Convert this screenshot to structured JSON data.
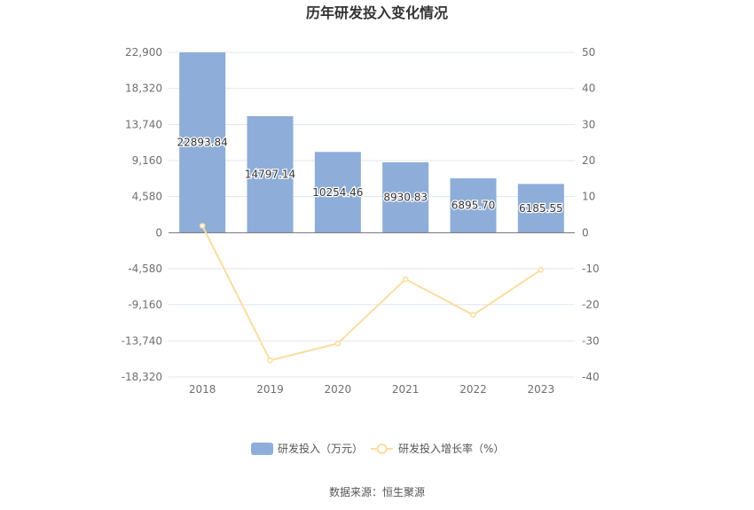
{
  "chart_data": {
    "type": "bar",
    "title": "历年研发投入变化情况",
    "categories": [
      "2018",
      "2019",
      "2020",
      "2021",
      "2022",
      "2023"
    ],
    "series": [
      {
        "name": "研发投入（万元）",
        "type": "bar",
        "axis": "left",
        "color": "#8eadd9",
        "values": [
          22893.84,
          14797.14,
          10254.46,
          8930.83,
          6895.7,
          6185.55
        ],
        "labels": [
          "22893.84",
          "14797.14",
          "10254.46",
          "8930.83",
          "6895.70",
          "6185.55"
        ]
      },
      {
        "name": "研发投入增长率（%）",
        "type": "line",
        "axis": "right",
        "color": "#fbdca0",
        "values": [
          1.9,
          -35.4,
          -30.7,
          -12.9,
          -22.8,
          -10.3
        ]
      }
    ],
    "y_left": {
      "ylim": [
        -18320,
        22900
      ],
      "ticks": [
        22900,
        18320,
        13740,
        9160,
        4580,
        0,
        -4580,
        -9160,
        -13740,
        -18320
      ],
      "tick_labels": [
        "22,900",
        "18,320",
        "13,740",
        "9,160",
        "4,580",
        "0",
        "-4,580",
        "-9,160",
        "-13,740",
        "-18,320"
      ]
    },
    "y_right": {
      "ylim": [
        -40,
        50
      ],
      "ticks": [
        50,
        40,
        30,
        20,
        10,
        0,
        -10,
        -20,
        -30,
        -40
      ],
      "tick_labels": [
        "50",
        "40",
        "30",
        "20",
        "10",
        "0",
        "-10",
        "-20",
        "-30",
        "-40"
      ]
    },
    "grid": true,
    "legend_position": "bottom",
    "source": "数据来源：恒生聚源"
  }
}
